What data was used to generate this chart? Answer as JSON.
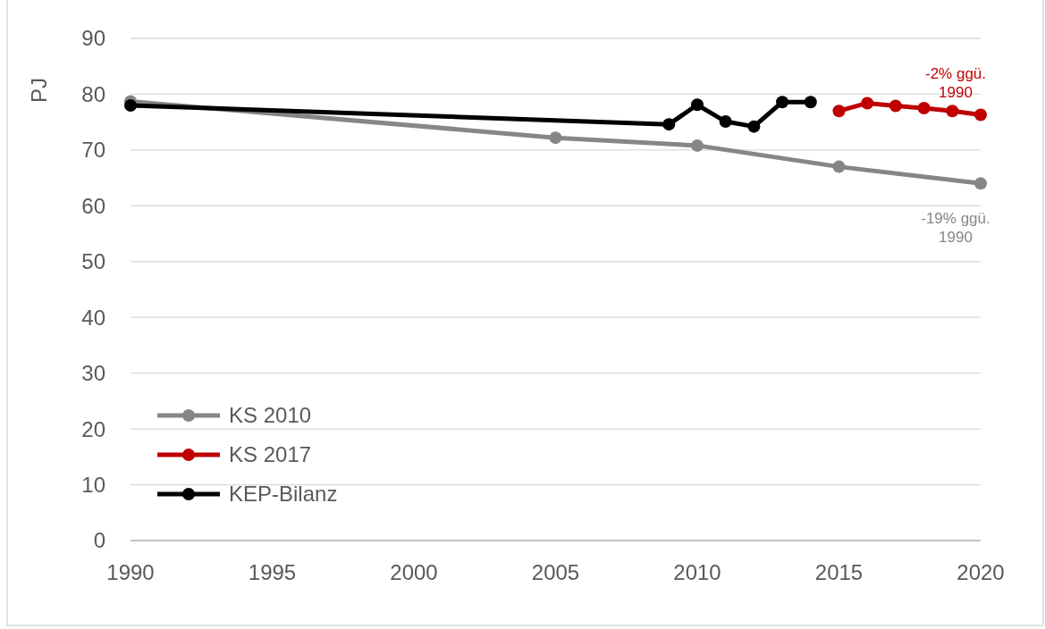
{
  "chart_data": {
    "type": "line",
    "ylabel": "PJ",
    "xlim": [
      1990,
      2020
    ],
    "xticks": [
      1990,
      1995,
      2000,
      2005,
      2010,
      2015,
      2020
    ],
    "ylim": [
      0,
      90
    ],
    "yticks": [
      0,
      10,
      20,
      30,
      40,
      50,
      60,
      70,
      80,
      90
    ],
    "grid": "y",
    "legend": "bottom left",
    "marker": "circle",
    "line_style": "solid",
    "series": [
      {
        "name": "KS 2010",
        "color": "#868686",
        "x": [
          1990,
          2005,
          2010,
          2015,
          2020
        ],
        "values": [
          78.7,
          72.2,
          70.8,
          67,
          64
        ]
      },
      {
        "name": "KS 2017",
        "color": "#c00000",
        "x": [
          2015,
          2016,
          2017,
          2018,
          2019,
          2020
        ],
        "values": [
          77,
          78.4,
          77.9,
          77.5,
          77,
          76.3
        ]
      },
      {
        "name": "KEP-Bilanz",
        "color": "#000000",
        "x": [
          1990,
          2009,
          2010,
          2011,
          2012,
          2013,
          2014
        ],
        "values": [
          78,
          74.6,
          78.1,
          75.1,
          74.2,
          78.6,
          78.6
        ]
      }
    ],
    "annotations": [
      "-2% ggü.\n1990",
      "-19% ggü.\n1990"
    ]
  }
}
